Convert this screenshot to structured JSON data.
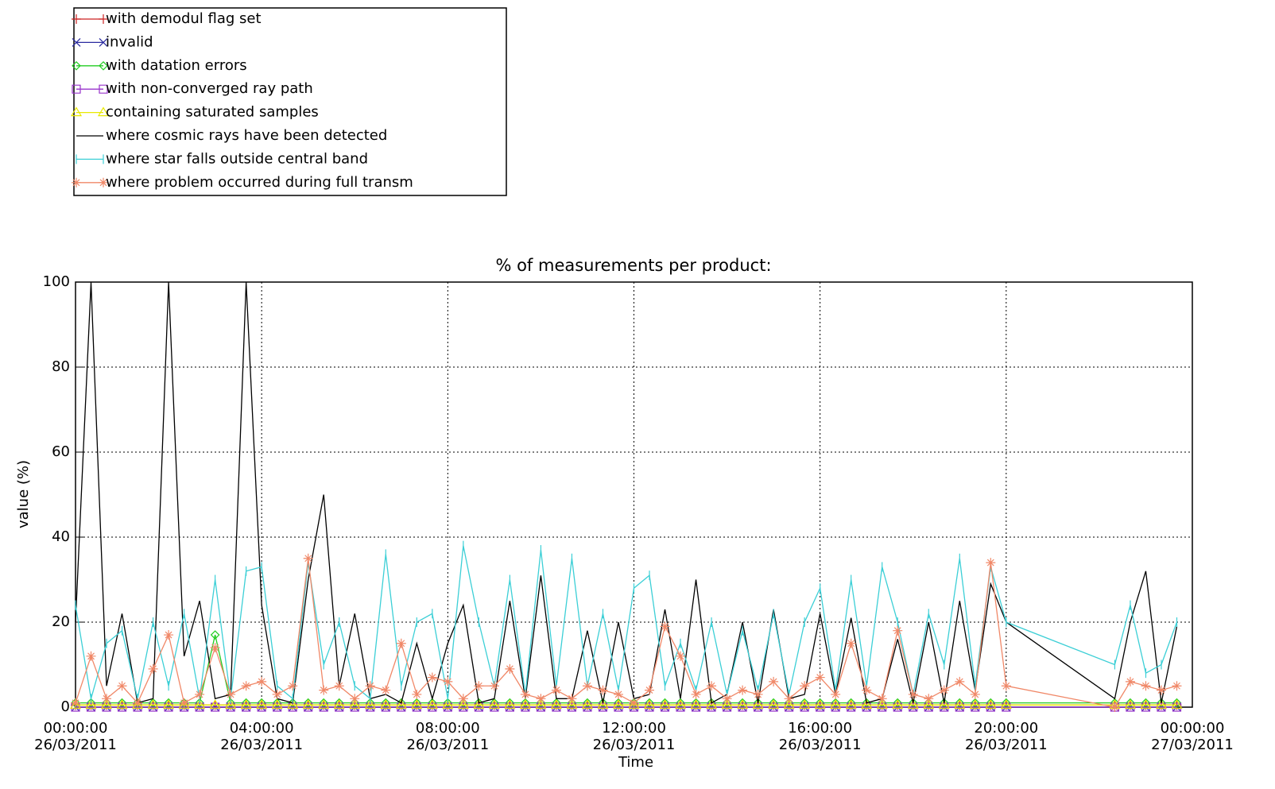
{
  "chart_data": {
    "type": "line",
    "title": "% of measurements per product:",
    "x_label": "Time",
    "y_label": "value (%)",
    "xlim": [
      "2011-03-26T00:00:00",
      "2011-03-27T00:00:00"
    ],
    "xticks": [
      {
        "value": "2011-03-26T00:00:00",
        "label": "00:00:00\n26/03/2011"
      },
      {
        "value": "2011-03-26T04:00:00",
        "label": "04:00:00\n26/03/2011"
      },
      {
        "value": "2011-03-26T08:00:00",
        "label": "08:00:00\n26/03/2011"
      },
      {
        "value": "2011-03-26T12:00:00",
        "label": "12:00:00\n26/03/2011"
      },
      {
        "value": "2011-03-26T16:00:00",
        "label": "16:00:00\n26/03/2011"
      },
      {
        "value": "2011-03-26T20:00:00",
        "label": "20:00:00\n26/03/2011"
      },
      {
        "value": "2011-03-27T00:00:00",
        "label": "00:00:00\n27/03/2011"
      }
    ],
    "ylim": [
      0,
      100
    ],
    "yticks": [
      0,
      20,
      40,
      60,
      80,
      100
    ],
    "grid": true,
    "legend_position": "top-left",
    "x": [
      "2011-03-26T00:00:00",
      "2011-03-26T00:20:00",
      "2011-03-26T00:40:00",
      "2011-03-26T01:00:00",
      "2011-03-26T01:20:00",
      "2011-03-26T01:40:00",
      "2011-03-26T02:00:00",
      "2011-03-26T02:20:00",
      "2011-03-26T02:40:00",
      "2011-03-26T03:00:00",
      "2011-03-26T03:20:00",
      "2011-03-26T03:40:00",
      "2011-03-26T04:00:00",
      "2011-03-26T04:20:00",
      "2011-03-26T04:40:00",
      "2011-03-26T05:00:00",
      "2011-03-26T05:20:00",
      "2011-03-26T05:40:00",
      "2011-03-26T06:00:00",
      "2011-03-26T06:20:00",
      "2011-03-26T06:40:00",
      "2011-03-26T07:00:00",
      "2011-03-26T07:20:00",
      "2011-03-26T07:40:00",
      "2011-03-26T08:00:00",
      "2011-03-26T08:20:00",
      "2011-03-26T08:40:00",
      "2011-03-26T09:00:00",
      "2011-03-26T09:20:00",
      "2011-03-26T09:40:00",
      "2011-03-26T10:00:00",
      "2011-03-26T10:20:00",
      "2011-03-26T10:40:00",
      "2011-03-26T11:00:00",
      "2011-03-26T11:20:00",
      "2011-03-26T11:40:00",
      "2011-03-26T12:00:00",
      "2011-03-26T12:20:00",
      "2011-03-26T12:40:00",
      "2011-03-26T13:00:00",
      "2011-03-26T13:20:00",
      "2011-03-26T13:40:00",
      "2011-03-26T14:00:00",
      "2011-03-26T14:20:00",
      "2011-03-26T14:40:00",
      "2011-03-26T15:00:00",
      "2011-03-26T15:20:00",
      "2011-03-26T15:40:00",
      "2011-03-26T16:00:00",
      "2011-03-26T16:20:00",
      "2011-03-26T16:40:00",
      "2011-03-26T17:00:00",
      "2011-03-26T17:20:00",
      "2011-03-26T17:40:00",
      "2011-03-26T18:00:00",
      "2011-03-26T18:20:00",
      "2011-03-26T18:40:00",
      "2011-03-26T19:00:00",
      "2011-03-26T19:20:00",
      "2011-03-26T19:40:00",
      "2011-03-26T20:00:00",
      "2011-03-26T22:20:00",
      "2011-03-26T22:40:00",
      "2011-03-26T23:00:00",
      "2011-03-26T23:20:00",
      "2011-03-26T23:40:00"
    ],
    "series": [
      {
        "name": "with demodul flag set",
        "color": "#cc2222",
        "marker": "plus",
        "values": [
          0.5,
          0.5,
          0.5,
          0.5,
          0.5,
          0.5,
          0.5,
          0.5,
          0.5,
          0.5,
          0.5,
          0.5,
          0.5,
          0.5,
          0.5,
          0.5,
          0.5,
          0.5,
          0.5,
          0.5,
          0.5,
          0.5,
          0.5,
          0.5,
          0.5,
          0.5,
          0.5,
          0.5,
          0.5,
          0.5,
          0.5,
          0.5,
          0.5,
          0.5,
          0.5,
          0.5,
          0.5,
          0.5,
          0.5,
          0.5,
          0.5,
          0.5,
          0.5,
          0.5,
          0.5,
          0.5,
          0.5,
          0.5,
          0.5,
          0.5,
          0.5,
          0.5,
          0.5,
          0.5,
          0.5,
          0.5,
          0.5,
          0.5,
          0.5,
          0.5,
          0.5,
          0.5,
          0.5,
          0.5,
          0.5,
          0.5
        ]
      },
      {
        "name": "invalid",
        "color": "#2a2aa0",
        "marker": "x",
        "values": [
          0,
          0,
          0,
          0,
          0,
          0,
          0,
          0,
          0,
          0,
          0,
          0,
          0,
          0,
          0,
          0,
          0,
          0,
          0,
          0,
          0,
          0,
          0,
          0,
          0,
          0,
          0,
          0,
          0,
          0,
          0,
          0,
          0,
          0,
          0,
          0,
          0,
          0,
          0,
          0,
          0,
          0,
          0,
          0,
          0,
          0,
          0,
          0,
          0,
          0,
          0,
          0,
          0,
          0,
          0,
          0,
          0,
          0,
          0,
          0,
          0,
          0,
          0,
          0,
          0,
          0
        ]
      },
      {
        "name": "with datation errors",
        "color": "#22cc22",
        "marker": "diamond",
        "values": [
          1,
          1,
          1,
          1,
          1,
          1,
          1,
          1,
          1,
          17,
          1,
          1,
          1,
          1,
          1,
          1,
          1,
          1,
          1,
          1,
          1,
          1,
          1,
          1,
          1,
          1,
          1,
          1,
          1,
          1,
          1,
          1,
          1,
          1,
          1,
          1,
          1,
          1,
          1,
          1,
          1,
          1,
          1,
          1,
          1,
          1,
          1,
          1,
          1,
          1,
          1,
          1,
          1,
          1,
          1,
          1,
          1,
          1,
          1,
          1,
          1,
          1,
          1,
          1,
          1,
          1
        ]
      },
      {
        "name": "with non-converged ray path",
        "color": "#9933cc",
        "marker": "square",
        "values": [
          0,
          0,
          0,
          0,
          0,
          0,
          0,
          0,
          0,
          0,
          0,
          0,
          0,
          0,
          0,
          0,
          0,
          0,
          0,
          0,
          0,
          0,
          0,
          0,
          0,
          0,
          0,
          0,
          0,
          0,
          0,
          0,
          0,
          0,
          0,
          0,
          0,
          0,
          0,
          0,
          0,
          0,
          0,
          0,
          0,
          0,
          0,
          0,
          0,
          0,
          0,
          0,
          0,
          0,
          0,
          0,
          0,
          0,
          0,
          0,
          0,
          0,
          0,
          0,
          0,
          0
        ]
      },
      {
        "name": "containing saturated samples",
        "color": "#e8e800",
        "marker": "triangle",
        "values": [
          0.5,
          0.5,
          0.5,
          0.5,
          0.5,
          0.5,
          0.5,
          0.5,
          0.5,
          0.5,
          0.5,
          0.5,
          0.5,
          0.5,
          0.5,
          0.5,
          0.5,
          0.5,
          0.5,
          0.5,
          0.5,
          0.5,
          0.5,
          0.5,
          0.5,
          0.5,
          0.5,
          0.5,
          0.5,
          0.5,
          0.5,
          0.5,
          0.5,
          0.5,
          0.5,
          0.5,
          0.5,
          0.5,
          0.5,
          0.5,
          0.5,
          0.5,
          0.5,
          0.5,
          0.5,
          0.5,
          0.5,
          0.5,
          0.5,
          0.5,
          0.5,
          0.5,
          0.5,
          0.5,
          0.5,
          0.5,
          0.5,
          0.5,
          0.5,
          0.5,
          0.5,
          0.5,
          0.5,
          0.5,
          0.5,
          0.5
        ]
      },
      {
        "name": "where cosmic rays have been detected",
        "color": "#000000",
        "marker": "none",
        "values": [
          20,
          100,
          5,
          22,
          1,
          2,
          100,
          12,
          25,
          2,
          3,
          100,
          24,
          2,
          1,
          30,
          50,
          5,
          22,
          2,
          3,
          1,
          15,
          2,
          15,
          24,
          1,
          2,
          25,
          2,
          31,
          2,
          2,
          18,
          1,
          20,
          2,
          3,
          23,
          2,
          30,
          1,
          3,
          20,
          1,
          23,
          2,
          3,
          22,
          3,
          21,
          1,
          2,
          16,
          1,
          20,
          1,
          25,
          4,
          29,
          20,
          2,
          20,
          32,
          1,
          19
        ]
      },
      {
        "name": "where star falls outside central band",
        "color": "#3ccfd6",
        "marker": "bar",
        "values": [
          24,
          2,
          15,
          18,
          2,
          20,
          5,
          22,
          2,
          30,
          2,
          32,
          33,
          5,
          2,
          34,
          10,
          20,
          5,
          2,
          36,
          5,
          20,
          22,
          2,
          38,
          20,
          5,
          30,
          3,
          37,
          5,
          35,
          5,
          22,
          4,
          28,
          31,
          5,
          15,
          4,
          20,
          3,
          18,
          4,
          22,
          3,
          20,
          28,
          4,
          30,
          5,
          33,
          20,
          3,
          22,
          10,
          35,
          5,
          33,
          20,
          10,
          24,
          8,
          10,
          20
        ]
      },
      {
        "name": "where problem occurred during full transm",
        "color": "#f08868",
        "marker": "asterisk",
        "values": [
          1,
          12,
          2,
          5,
          1,
          9,
          17,
          1,
          3,
          14,
          3,
          5,
          6,
          3,
          5,
          35,
          4,
          5,
          2,
          5,
          4,
          15,
          3,
          7,
          6,
          2,
          5,
          5,
          9,
          3,
          2,
          4,
          2,
          5,
          4,
          3,
          1,
          4,
          19,
          12,
          3,
          5,
          2,
          4,
          3,
          6,
          2,
          5,
          7,
          3,
          15,
          4,
          2,
          18,
          3,
          2,
          4,
          6,
          3,
          34,
          5,
          0,
          6,
          5,
          4,
          5
        ]
      }
    ]
  }
}
